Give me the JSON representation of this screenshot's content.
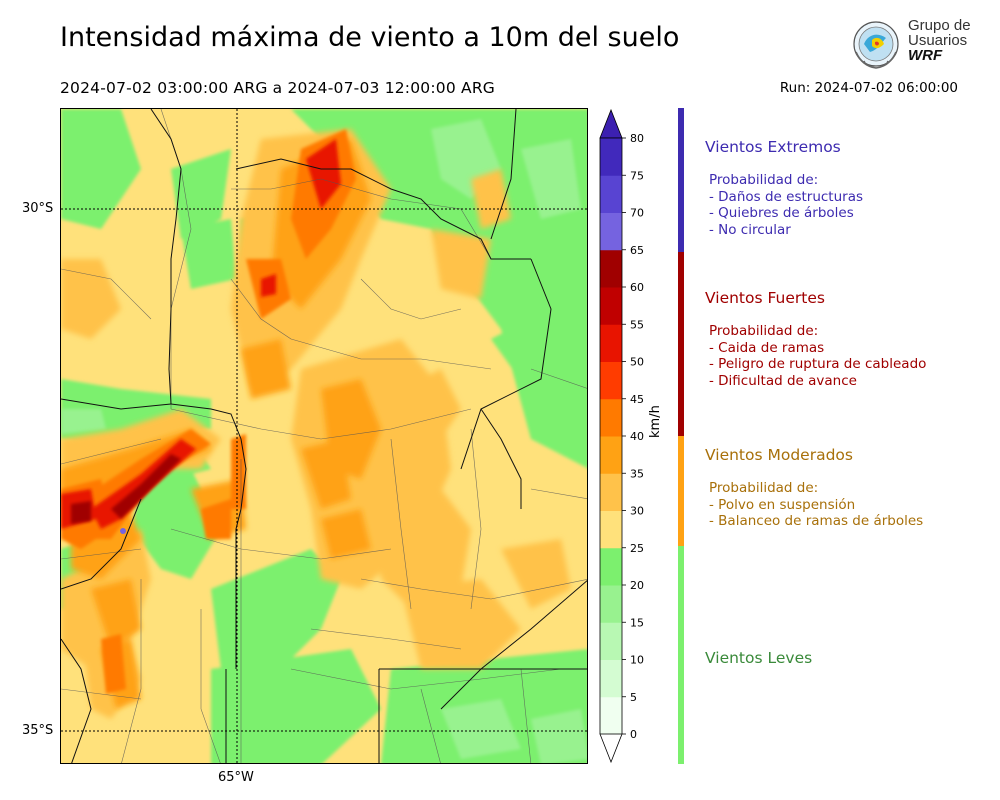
{
  "header": {
    "title": "Intensidad máxima de viento a 10m del suelo",
    "period": "2024-07-02 03:00:00 ARG  a  2024-07-03 12:00:00 ARG",
    "run": "Run: 2024-07-02 06:00:00"
  },
  "logo": {
    "line1": "Grupo de",
    "line2": "Usuarios",
    "line3": "WRF"
  },
  "axes": {
    "lat_labels": [
      "30°S",
      "35°S"
    ],
    "lon_labels": [
      "65°W"
    ]
  },
  "colorbar": {
    "unit": "km/h",
    "ticks": [
      "0",
      "5",
      "10",
      "15",
      "20",
      "25",
      "30",
      "35",
      "40",
      "45",
      "50",
      "55",
      "60",
      "65",
      "70",
      "75",
      "80"
    ],
    "colors": [
      "#f0fff0",
      "#d4fcd2",
      "#b8f8b3",
      "#98f28f",
      "#7cf06e",
      "#ffe17b",
      "#ffc24a",
      "#ffa214",
      "#ff7a00",
      "#ff3c00",
      "#e81400",
      "#c00000",
      "#a00000",
      "#7563e0",
      "#5844d2",
      "#4129bc"
    ],
    "under_color": "#ffffff",
    "over_color": "#3c20b0"
  },
  "categories": [
    {
      "title": "Vientos Extremos",
      "color": "#3d2bb0",
      "heading": "Probabilidad de:",
      "items": [
        "- Daños de estructuras",
        "- Quiebres de árboles",
        "- No circular"
      ]
    },
    {
      "title": "Vientos Fuertes",
      "color": "#a00000",
      "heading": "Probabilidad de:",
      "items": [
        "- Caida de ramas",
        "- Peligro de ruptura de cableado",
        "- Dificultad de avance"
      ]
    },
    {
      "title": "Vientos Moderados",
      "color": "#a8700a",
      "heading": "Probabilidad de:",
      "items": [
        "- Polvo en suspensión",
        "- Balanceo de ramas de árboles"
      ]
    },
    {
      "title": "Vientos Leves",
      "color": "#3a8a3a",
      "heading": "",
      "items": []
    }
  ],
  "legend_bar_colors": [
    "#3d2bb0",
    "#a00000",
    "#ffa214",
    "#7cf06e"
  ]
}
